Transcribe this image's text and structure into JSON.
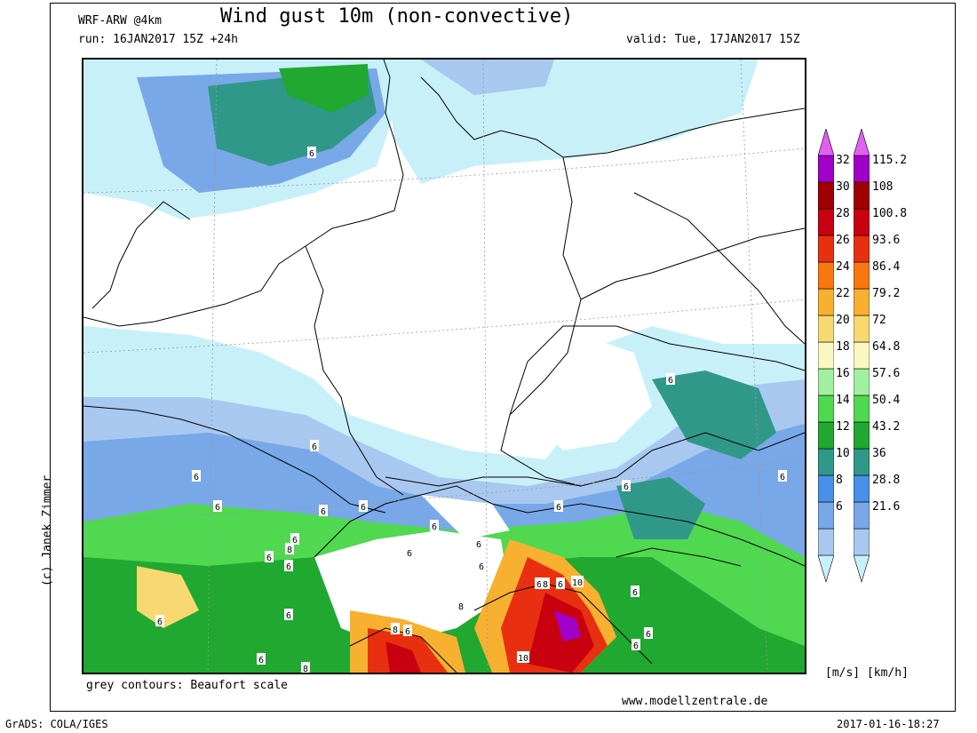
{
  "header": {
    "model": "WRF-ARW @4km",
    "title": "Wind gust 10m (non-convective)",
    "run": "run: 16JAN2017 15Z +24h",
    "valid": "valid: Tue, 17JAN2017 15Z"
  },
  "footer": {
    "grey_contours": "grey contours: Beaufort scale",
    "website": "www.modellzentrale.de",
    "copyright": "(c) Janek Zimmer",
    "grads": "GrADS: COLA/IGES",
    "timestamp": "2017-01-16-18:27",
    "units": "[m/s] [km/h]"
  },
  "colorbar": {
    "colors": [
      "#c8f0f8",
      "#a8c8f0",
      "#78a8e8",
      "#4890e8",
      "#309888",
      "#20a830",
      "#50d850",
      "#a0f0a0",
      "#f8f8c0",
      "#f8d870",
      "#f8b030",
      "#f87810",
      "#e83010",
      "#c80010",
      "#a00000",
      "#a000c8",
      "#e060f0"
    ],
    "ms_labels": [
      "32",
      "30",
      "28",
      "26",
      "24",
      "22",
      "20",
      "18",
      "16",
      "14",
      "12",
      "10",
      "8",
      "6"
    ],
    "kmh_labels": [
      "115.2",
      "108",
      "100.8",
      "93.6",
      "86.4",
      "79.2",
      "72",
      "64.8",
      "57.6",
      "50.4",
      "43.2",
      "36",
      "28.8",
      "21.6"
    ]
  },
  "map": {
    "beaufort_labels": [
      "6",
      "6",
      "6",
      "6",
      "6",
      "6",
      "6",
      "6",
      "6",
      "6",
      "6",
      "6",
      "6",
      "6",
      "6",
      "6",
      "6",
      "6",
      "6",
      "6",
      "6",
      "6",
      "6",
      "6",
      "6",
      "6",
      "8",
      "8",
      "8",
      "8",
      "8",
      "10",
      "10"
    ]
  }
}
